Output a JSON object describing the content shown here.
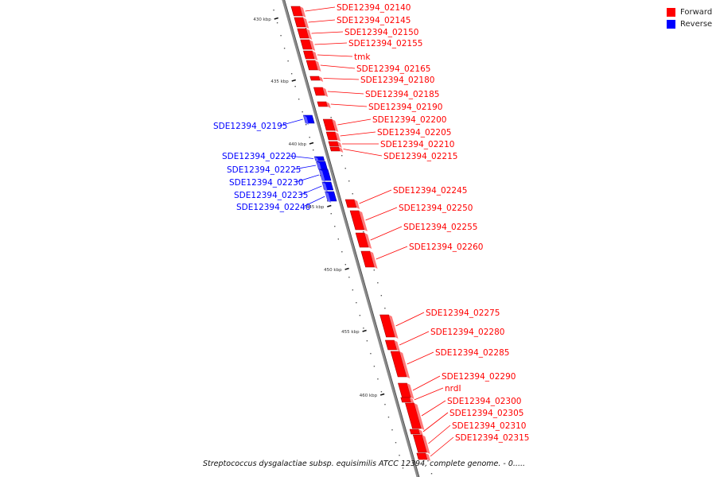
{
  "legend": {
    "forward_label": "Forward",
    "reverse_label": "Reverse",
    "forward_color": "#ff0000",
    "reverse_color": "#0000ff"
  },
  "caption": "Streptococcus dysgalactiae subsp. equisimilis ATCC 12394, complete genome. - 0.....",
  "ticks": [
    {
      "label": "430 kbp"
    },
    {
      "label": "435 kbp"
    },
    {
      "label": "440 kbp"
    },
    {
      "label": "445 kbp"
    },
    {
      "label": "450 kbp"
    },
    {
      "label": "455 kbp"
    },
    {
      "label": "460 kbp"
    }
  ],
  "genes": [
    {
      "label": "SDE12394_02140",
      "strand": "forward"
    },
    {
      "label": "SDE12394_02145",
      "strand": "forward"
    },
    {
      "label": "SDE12394_02150",
      "strand": "forward"
    },
    {
      "label": "SDE12394_02155",
      "strand": "forward"
    },
    {
      "label": "tmk",
      "strand": "forward"
    },
    {
      "label": "SDE12394_02165",
      "strand": "forward"
    },
    {
      "label": "SDE12394_02180",
      "strand": "forward"
    },
    {
      "label": "SDE12394_02185",
      "strand": "forward"
    },
    {
      "label": "SDE12394_02190",
      "strand": "forward"
    },
    {
      "label": "SDE12394_02195",
      "strand": "reverse"
    },
    {
      "label": "SDE12394_02200",
      "strand": "forward"
    },
    {
      "label": "SDE12394_02205",
      "strand": "forward"
    },
    {
      "label": "SDE12394_02210",
      "strand": "forward"
    },
    {
      "label": "SDE12394_02215",
      "strand": "forward"
    },
    {
      "label": "SDE12394_02220",
      "strand": "reverse"
    },
    {
      "label": "SDE12394_02225",
      "strand": "reverse"
    },
    {
      "label": "SDE12394_02230",
      "strand": "reverse"
    },
    {
      "label": "SDE12394_02235",
      "strand": "reverse"
    },
    {
      "label": "SDE12394_02240",
      "strand": "reverse"
    },
    {
      "label": "SDE12394_02245",
      "strand": "forward"
    },
    {
      "label": "SDE12394_02250",
      "strand": "forward"
    },
    {
      "label": "SDE12394_02255",
      "strand": "forward"
    },
    {
      "label": "SDE12394_02260",
      "strand": "forward"
    },
    {
      "label": "SDE12394_02275",
      "strand": "forward"
    },
    {
      "label": "SDE12394_02280",
      "strand": "forward"
    },
    {
      "label": "SDE12394_02285",
      "strand": "forward"
    },
    {
      "label": "SDE12394_02290",
      "strand": "forward"
    },
    {
      "label": "nrdI",
      "strand": "forward"
    },
    {
      "label": "SDE12394_02300",
      "strand": "forward"
    },
    {
      "label": "SDE12394_02305",
      "strand": "forward"
    },
    {
      "label": "SDE12394_02310",
      "strand": "forward"
    },
    {
      "label": "SDE12394_02315",
      "strand": "forward"
    }
  ]
}
